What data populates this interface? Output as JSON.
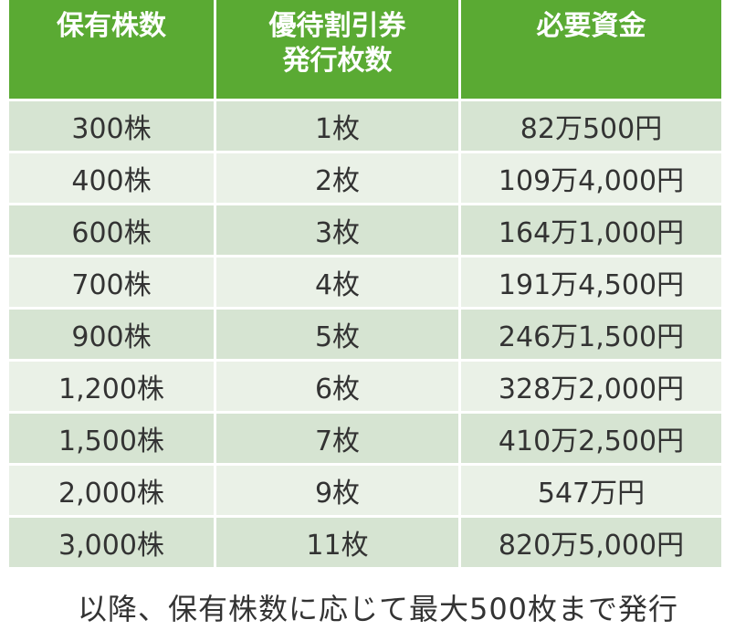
{
  "table": {
    "headers": {
      "col1": "保有株数",
      "col2_line1": "優待割引券",
      "col2_line2": "発行枚数",
      "col3": "必要資金"
    },
    "rows": [
      {
        "shares": "300株",
        "tickets": "1枚",
        "funds": "82万500円"
      },
      {
        "shares": "400株",
        "tickets": "2枚",
        "funds": "109万4,000円"
      },
      {
        "shares": "600株",
        "tickets": "3枚",
        "funds": "164万1,000円"
      },
      {
        "shares": "700株",
        "tickets": "4枚",
        "funds": "191万4,500円"
      },
      {
        "shares": "900株",
        "tickets": "5枚",
        "funds": "246万1,500円"
      },
      {
        "shares": "1,200株",
        "tickets": "6枚",
        "funds": "328万2,000円"
      },
      {
        "shares": "1,500株",
        "tickets": "7枚",
        "funds": "410万2,500円"
      },
      {
        "shares": "2,000株",
        "tickets": "9枚",
        "funds": "547万円"
      },
      {
        "shares": "3,000株",
        "tickets": "11枚",
        "funds": "820万5,000円"
      }
    ]
  },
  "footnote": "以降、保有株数に応じて最大500枚まで発行",
  "colors": {
    "header_bg": "#5aaa33",
    "row_odd": "#d6e4d2",
    "row_even": "#eaf1e7"
  }
}
